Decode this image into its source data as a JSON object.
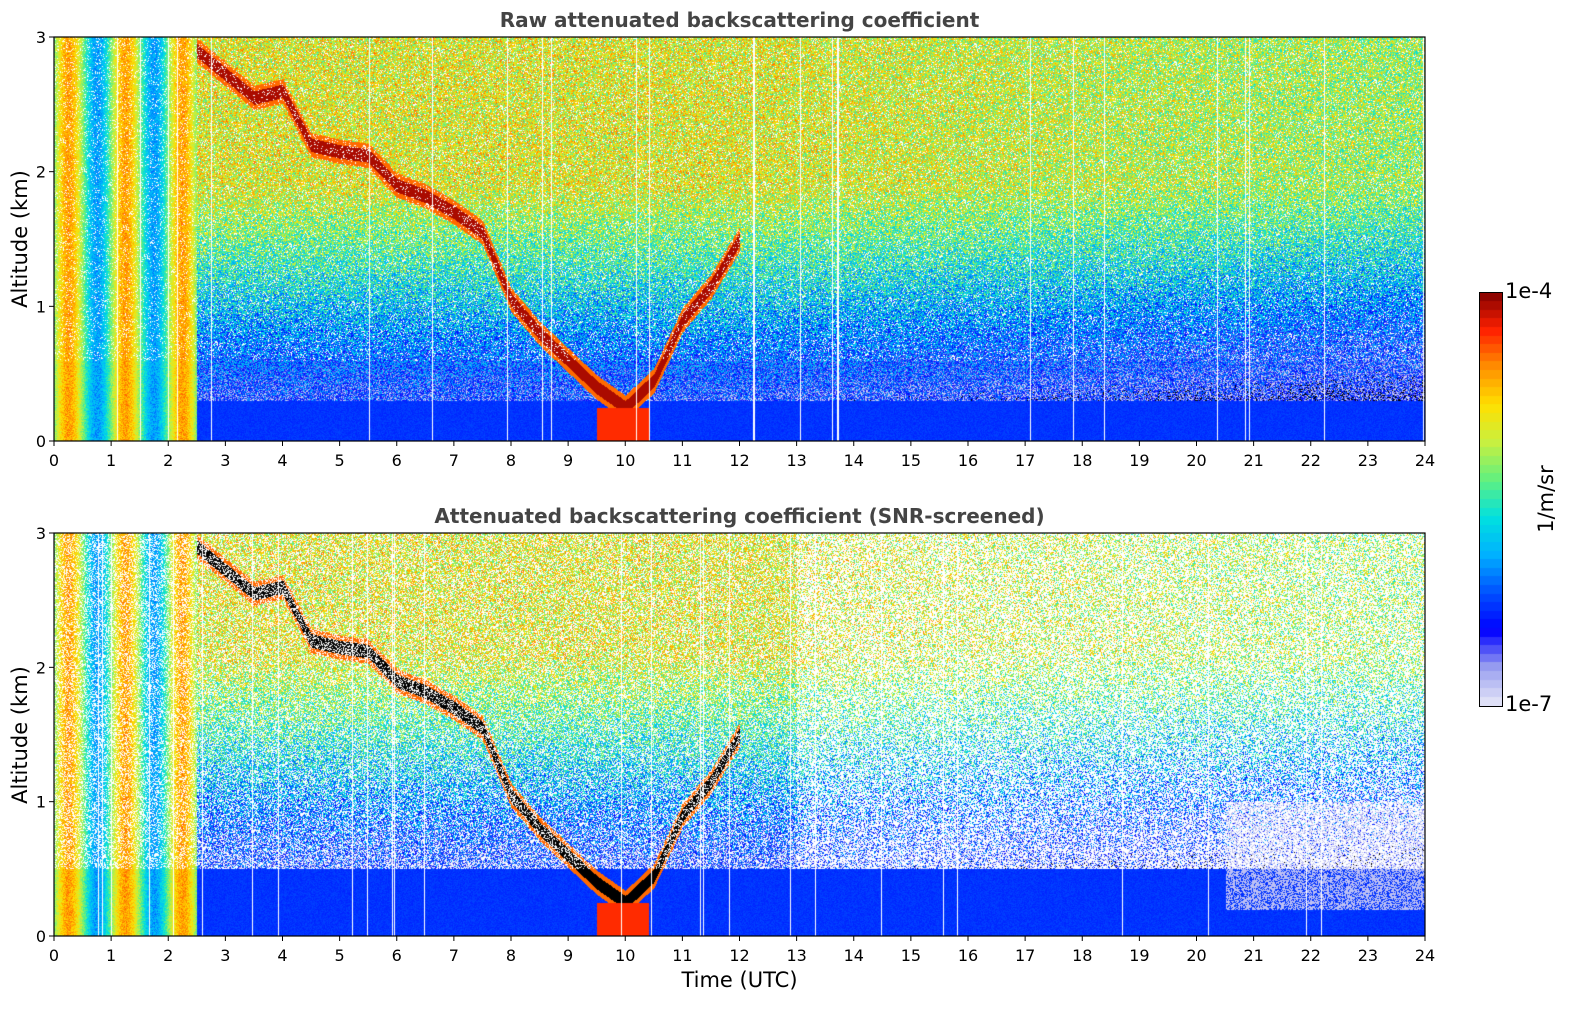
{
  "chart_data": [
    {
      "type": "heatmap",
      "title": "Raw attenuated backscattering coefficient",
      "xlabel": "",
      "ylabel": "Altitude (km)",
      "xlim": [
        0,
        24
      ],
      "ylim": [
        0,
        3
      ],
      "x_ticks": [
        "0",
        "1",
        "2",
        "3",
        "4",
        "5",
        "6",
        "7",
        "8",
        "9",
        "10",
        "11",
        "12",
        "13",
        "14",
        "15",
        "16",
        "17",
        "18",
        "19",
        "20",
        "21",
        "22",
        "23",
        "24"
      ],
      "y_ticks": [
        "0",
        "1",
        "2",
        "3"
      ],
      "features": {
        "boundary_layer_top_km": 0.3,
        "cloud_layer": {
          "time_h": [
            2.5,
            3.5,
            4.0,
            4.5,
            5.0,
            5.5,
            6.0,
            6.5,
            7.0,
            7.5,
            8.0,
            8.5,
            9.0,
            9.5,
            10.0,
            10.5,
            11.0,
            11.5,
            12.0
          ],
          "altitude_km": [
            2.9,
            2.55,
            2.6,
            2.2,
            2.15,
            2.12,
            1.9,
            1.82,
            1.7,
            1.55,
            1.05,
            0.8,
            0.6,
            0.4,
            0.25,
            0.45,
            0.9,
            1.15,
            1.5
          ]
        }
      }
    },
    {
      "type": "heatmap",
      "title": "Attenuated backscattering coefficient (SNR-screened)",
      "xlabel": "Time (UTC)",
      "ylabel": "Altitude (km)",
      "xlim": [
        0,
        24
      ],
      "ylim": [
        0,
        3
      ],
      "x_ticks": [
        "0",
        "1",
        "2",
        "3",
        "4",
        "5",
        "6",
        "7",
        "8",
        "9",
        "10",
        "11",
        "12",
        "13",
        "14",
        "15",
        "16",
        "17",
        "18",
        "19",
        "20",
        "21",
        "22",
        "23",
        "24"
      ],
      "y_ticks": [
        "0",
        "1",
        "2",
        "3"
      ],
      "features": {
        "boundary_layer_top_km": 0.5,
        "cloud_layer": {
          "time_h": [
            2.5,
            3.5,
            4.0,
            4.5,
            5.0,
            5.5,
            6.0,
            6.5,
            7.0,
            7.5,
            8.0,
            8.5,
            9.0,
            9.5,
            10.0,
            10.5,
            11.0,
            11.5,
            12.0
          ],
          "altitude_km": [
            2.9,
            2.55,
            2.6,
            2.2,
            2.15,
            2.12,
            1.9,
            1.82,
            1.7,
            1.55,
            1.05,
            0.8,
            0.6,
            0.4,
            0.25,
            0.45,
            0.9,
            1.15,
            1.5
          ]
        }
      }
    }
  ],
  "colorbar": {
    "label": "1/m/sr",
    "max_label": "1e-4",
    "min_label": "1e-7",
    "scale": "log",
    "colors": [
      "#e8e8f8",
      "#9aa0f0",
      "#0000ff",
      "#0050ff",
      "#00b0ff",
      "#00e0e0",
      "#60f080",
      "#c8f040",
      "#ffe000",
      "#ff9000",
      "#ff2000",
      "#800000"
    ]
  }
}
